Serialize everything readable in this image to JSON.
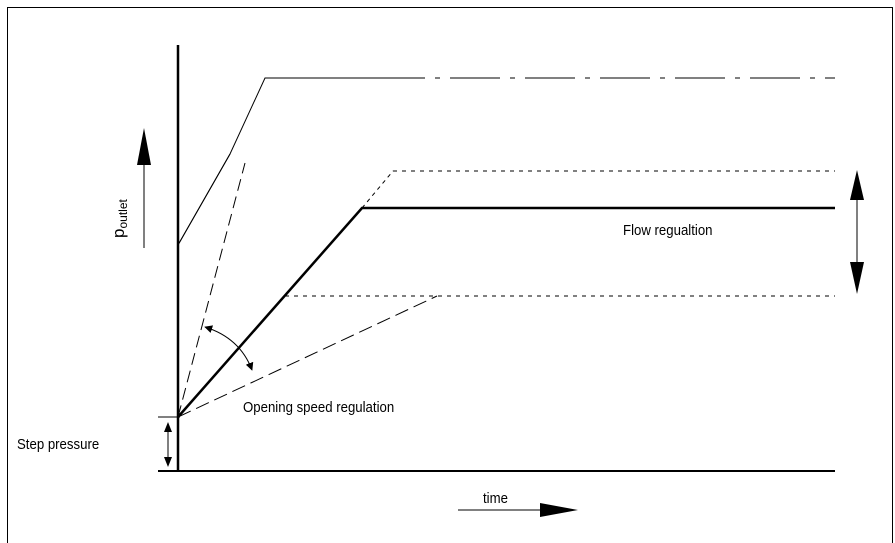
{
  "labels": {
    "y_axis_main": "p",
    "y_axis_sub": "outlet",
    "flow": "Flow regualtion",
    "opening": "Opening speed regulation",
    "step": "Step pressure",
    "time": "time"
  },
  "colors": {
    "stroke": "#000000",
    "background": "#ffffff"
  }
}
